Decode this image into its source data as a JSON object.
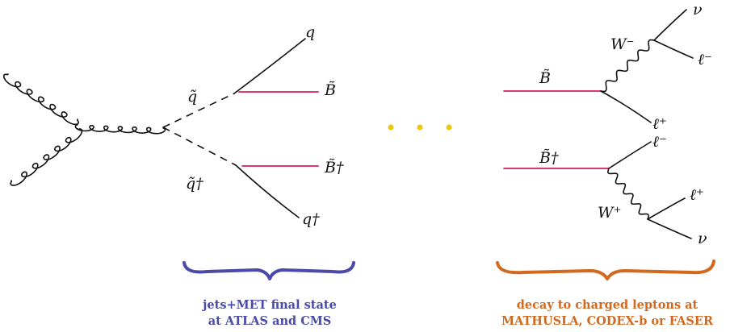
{
  "colors": {
    "line": "#111111",
    "bino": "#d81b60",
    "dots": "#f1c40f",
    "brace_left": "#4a4aa8",
    "brace_right": "#d2691e"
  },
  "left": {
    "labels": {
      "squark": "q̃",
      "antisquark": "q̃†",
      "quark": "q",
      "antiquark": "q†",
      "bino": "B̃",
      "antibino": "B̃†"
    },
    "caption": [
      "jets+MET final state",
      "at ATLAS and CMS"
    ]
  },
  "right": {
    "labels": {
      "bino": "B̃",
      "antibino": "B̃†",
      "w_minus": "W⁻",
      "w_plus": "W⁺",
      "nu_top": "ν",
      "lepton_minus_top": "ℓ⁻",
      "lepton_plus_top": "ℓ⁺",
      "lepton_minus_bottom": "ℓ⁻",
      "lepton_plus_bottom": "ℓ⁺",
      "nu_bottom": "ν"
    },
    "caption": [
      "decay to charged leptons at",
      "MATHUSLA, CODEX-b or FASER"
    ]
  },
  "dots": 3
}
